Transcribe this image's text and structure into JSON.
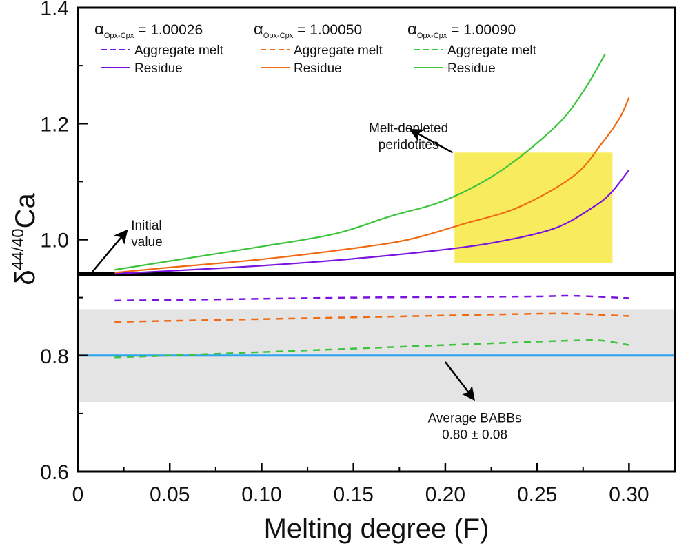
{
  "chart_data": {
    "type": "line",
    "title": "",
    "xlabel": "Melting degree (F)",
    "ylabel": {
      "prefix": "δ",
      "superscript": "44/40",
      "suffix": "Ca"
    },
    "xlim": [
      0,
      0.325
    ],
    "ylim": [
      0.6,
      1.4
    ],
    "x_ticks": [
      {
        "value": 0,
        "label": "0"
      },
      {
        "value": 0.05,
        "label": "0.05"
      },
      {
        "value": 0.1,
        "label": "0.10"
      },
      {
        "value": 0.15,
        "label": "0.15"
      },
      {
        "value": 0.2,
        "label": "0.20"
      },
      {
        "value": 0.25,
        "label": "0.25"
      },
      {
        "value": 0.3,
        "label": "0.30"
      }
    ],
    "x_minor_ticks": [
      0.025,
      0.075,
      0.125,
      0.175,
      0.225,
      0.275
    ],
    "y_ticks": [
      {
        "value": 0.6,
        "label": "0.6"
      },
      {
        "value": 0.8,
        "label": "0.8"
      },
      {
        "value": 1.0,
        "label": "1.0"
      },
      {
        "value": 1.2,
        "label": "1.2"
      },
      {
        "value": 1.4,
        "label": "1.4"
      }
    ],
    "y_minor_ticks": [
      0.7,
      0.9,
      1.1,
      1.3
    ],
    "grid": false,
    "legend_placement": "top",
    "legend": [
      {
        "alpha_symbol": "α",
        "alpha_sub": "Opx-Cpx",
        "alpha_value": "= 1.00026",
        "melt_label": "Aggregate melt",
        "residue_label": "Residue",
        "color": "#7a12e0"
      },
      {
        "alpha_symbol": "α",
        "alpha_sub": "Opx-Cpx",
        "alpha_value": "= 1.00050",
        "melt_label": "Aggregate melt",
        "residue_label": "Residue",
        "color": "#f06a14"
      },
      {
        "alpha_symbol": "α",
        "alpha_sub": "Opx-Cpx",
        "alpha_value": "= 1.00090",
        "melt_label": "Aggregate melt",
        "residue_label": "Residue",
        "color": "#3cc43c"
      }
    ],
    "series": [
      {
        "name": "Residue (α=1.00026)",
        "style": "solid",
        "color": "#7a12e0",
        "x": [
          0.02,
          0.05,
          0.1,
          0.15,
          0.2,
          0.23,
          0.26,
          0.28,
          0.29,
          0.3
        ],
        "y": [
          0.941,
          0.946,
          0.955,
          0.967,
          0.983,
          0.997,
          1.02,
          1.055,
          1.08,
          1.12
        ]
      },
      {
        "name": "Residue (α=1.00050)",
        "style": "solid",
        "color": "#f06a14",
        "x": [
          0.02,
          0.05,
          0.1,
          0.15,
          0.18,
          0.21,
          0.24,
          0.27,
          0.285,
          0.295,
          0.3
        ],
        "y": [
          0.943,
          0.952,
          0.966,
          0.985,
          1.0,
          1.027,
          1.056,
          1.11,
          1.165,
          1.21,
          1.245
        ]
      },
      {
        "name": "Residue (α=1.00090)",
        "style": "solid",
        "color": "#3cc43c",
        "x": [
          0.02,
          0.05,
          0.1,
          0.14,
          0.17,
          0.2,
          0.23,
          0.26,
          0.275,
          0.287
        ],
        "y": [
          0.948,
          0.963,
          0.988,
          1.01,
          1.04,
          1.068,
          1.118,
          1.195,
          1.255,
          1.32
        ]
      },
      {
        "name": "Aggregate melt (α=1.00026)",
        "style": "dashed",
        "color": "#7a12e0",
        "x": [
          0.02,
          0.05,
          0.1,
          0.15,
          0.2,
          0.25,
          0.27,
          0.3
        ],
        "y": [
          0.895,
          0.896,
          0.898,
          0.9,
          0.901,
          0.902,
          0.903,
          0.899
        ]
      },
      {
        "name": "Aggregate melt (α=1.00050)",
        "style": "dashed",
        "color": "#f06a14",
        "x": [
          0.02,
          0.05,
          0.1,
          0.15,
          0.2,
          0.25,
          0.27,
          0.3
        ],
        "y": [
          0.858,
          0.86,
          0.863,
          0.866,
          0.869,
          0.872,
          0.872,
          0.868
        ]
      },
      {
        "name": "Aggregate melt (α=1.00090)",
        "style": "dashed",
        "color": "#3cc43c",
        "x": [
          0.02,
          0.05,
          0.1,
          0.15,
          0.2,
          0.25,
          0.27,
          0.285,
          0.3
        ],
        "y": [
          0.797,
          0.8,
          0.806,
          0.812,
          0.818,
          0.824,
          0.826,
          0.826,
          0.818
        ]
      }
    ],
    "reference_lines": [
      {
        "name": "Initial value",
        "y": 0.94,
        "color": "#000000"
      },
      {
        "name": "Average BABBs",
        "y": 0.8,
        "color": "#2aa6f0"
      }
    ],
    "shaded_regions": [
      {
        "name": "BABBs range",
        "y_range": [
          0.72,
          0.88
        ],
        "x_range": [
          0,
          0.325
        ],
        "color": "#e4e4e4"
      },
      {
        "name": "Melt-depleted peridotites",
        "y_range": [
          0.96,
          1.15
        ],
        "x_range": [
          0.205,
          0.291
        ],
        "color": "#f8ec5e"
      }
    ],
    "annotations": [
      {
        "lines": [
          "Initial",
          "value"
        ],
        "x": 0.029,
        "y": 1.017,
        "arrow_from": [
          0.008,
          0.945
        ],
        "arrow_to": [
          0.026,
          1.013
        ]
      },
      {
        "lines": [
          "Melt-depleted",
          "peridotites"
        ],
        "x": 0.18,
        "y": 1.185,
        "arrow_from": [
          0.204,
          1.15
        ],
        "arrow_to": [
          0.182,
          1.188
        ]
      },
      {
        "lines": [
          "Average BABBs",
          "0.80 ± 0.08"
        ],
        "x": 0.216,
        "y": 0.685,
        "arrow_from": [
          0.2,
          0.789
        ],
        "arrow_to": [
          0.215,
          0.727
        ]
      }
    ]
  }
}
